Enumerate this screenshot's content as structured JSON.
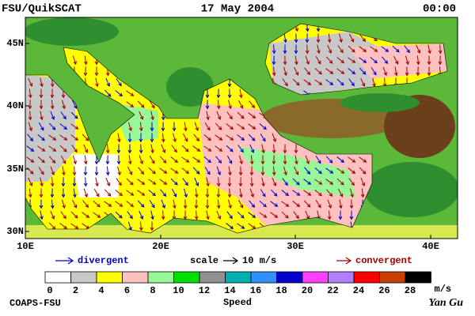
{
  "header": {
    "left": "FSU/QuikSCAT",
    "center": "17 May 2004",
    "right": "00:00"
  },
  "map": {
    "lat_labels": [
      "30N",
      "35N",
      "40N",
      "45N"
    ],
    "lon_labels": [
      "10E",
      "20E",
      "30E",
      "40E"
    ]
  },
  "legend": {
    "divergent": "divergent",
    "scale": "scale",
    "scale_value": "10 m/s",
    "convergent": "convergent"
  },
  "colorbar": {
    "labels": [
      "0",
      "2",
      "4",
      "6",
      "8",
      "10",
      "12",
      "14",
      "16",
      "18",
      "20",
      "22",
      "24",
      "26",
      "28"
    ],
    "colors": [
      "#ffffff",
      "#c8c8c8",
      "#ffff00",
      "#ffc0c0",
      "#98f898",
      "#00e000",
      "#909090",
      "#00b0b0",
      "#3090ff",
      "#0000c8",
      "#ff40ff",
      "#b080ff",
      "#ff0000",
      "#c84000",
      "#000000"
    ],
    "units": "m/s",
    "title": "Speed"
  },
  "footer": {
    "left": "COAPS-FSU",
    "right": "Yan Gu"
  }
}
